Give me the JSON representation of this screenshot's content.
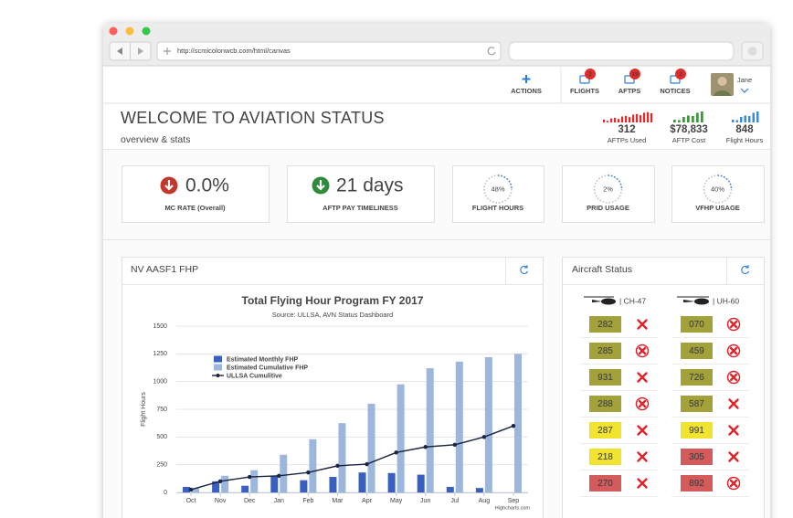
{
  "browser": {
    "url": "http://scmicolonwcb.com/html/canvas"
  },
  "nav": {
    "actions": "ACTIONS",
    "items": [
      {
        "label": "FLIGHTS",
        "badge": "2"
      },
      {
        "label": "AFTPS",
        "badge": "19"
      },
      {
        "label": "NOTICES",
        "badge": "2"
      }
    ],
    "user": "Jane"
  },
  "header": {
    "title": "WELCOME TO AVIATION STATUS",
    "subtitle": "overview & stats",
    "stats": [
      {
        "value": "312",
        "label": "AFTPs Used"
      },
      {
        "value": "$78,833",
        "label": "AFTP Cost"
      },
      {
        "value": "848",
        "label": "Flight Hours"
      }
    ]
  },
  "kpis": [
    {
      "value": "0.0%",
      "label": "MC RATE (Overall)"
    },
    {
      "value": "21 days",
      "label": "AFTP PAY TIMELINESS"
    },
    {
      "value": "48%",
      "label": "FLIGHT HOURS"
    },
    {
      "value": "2%",
      "label": "PRID USAGE"
    },
    {
      "value": "40%",
      "label": "VFHP USAGE"
    }
  ],
  "fhp_panel": {
    "title": "NV AASF1 FHP",
    "chart": {
      "type": "bar",
      "title": "Total Flying Hour Program FY 2017",
      "subtitle": "Source: ULLSA, AVN Status Dashboard",
      "y_label": "Flight Hours",
      "credit": "Highcharts.com",
      "categories": [
        "Oct",
        "Nov",
        "Dec",
        "Jan",
        "Feb",
        "Mar",
        "Apr",
        "May",
        "Jun",
        "Jul",
        "Aug",
        "Sep"
      ],
      "series": [
        {
          "name": "Estimated Monthly FHP",
          "type": "bar",
          "color": "#3a5fc2",
          "values": [
            50,
            100,
            60,
            150,
            110,
            140,
            180,
            175,
            160,
            50,
            40,
            0
          ]
        },
        {
          "name": "Estimated Cumulative FHP",
          "type": "bar",
          "color": "#9db6dc",
          "values": [
            40,
            150,
            200,
            340,
            480,
            625,
            800,
            975,
            1120,
            1180,
            1220,
            1250
          ]
        },
        {
          "name": "ULLSA Cumulitive",
          "type": "line",
          "color": "#1b2440",
          "values": [
            25,
            100,
            140,
            150,
            180,
            240,
            255,
            360,
            410,
            430,
            500,
            600
          ]
        }
      ],
      "ylim": [
        0,
        1500
      ],
      "yticks": [
        0,
        250,
        500,
        750,
        1000,
        1250,
        1500
      ],
      "grid": true
    }
  },
  "aircraft_panel": {
    "title": "Aircraft Status",
    "columns": [
      {
        "name": "| CH-47",
        "rows": [
          {
            "value": "282",
            "color": "#a3a23a",
            "icon": "x"
          },
          {
            "value": "285",
            "color": "#a3a23a",
            "icon": "circle-x"
          },
          {
            "value": "931",
            "color": "#a3a23a",
            "icon": "x"
          },
          {
            "value": "288",
            "color": "#a3a23a",
            "icon": "circle-x"
          },
          {
            "value": "287",
            "color": "#f1e431",
            "icon": "x"
          },
          {
            "value": "218",
            "color": "#f1e431",
            "icon": "x"
          },
          {
            "value": "270",
            "color": "#d35b5b",
            "icon": "x"
          }
        ]
      },
      {
        "name": "| UH-60",
        "rows": [
          {
            "value": "070",
            "color": "#a3a23a",
            "icon": "circle-x"
          },
          {
            "value": "459",
            "color": "#a3a23a",
            "icon": "circle-x"
          },
          {
            "value": "726",
            "color": "#a3a23a",
            "icon": "circle-x"
          },
          {
            "value": "587",
            "color": "#a3a23a",
            "icon": "x"
          },
          {
            "value": "991",
            "color": "#f1e431",
            "icon": "x"
          },
          {
            "value": "305",
            "color": "#d35b5b",
            "icon": "x"
          },
          {
            "value": "892",
            "color": "#d35b5b",
            "icon": "circle-x"
          }
        ]
      }
    ]
  }
}
